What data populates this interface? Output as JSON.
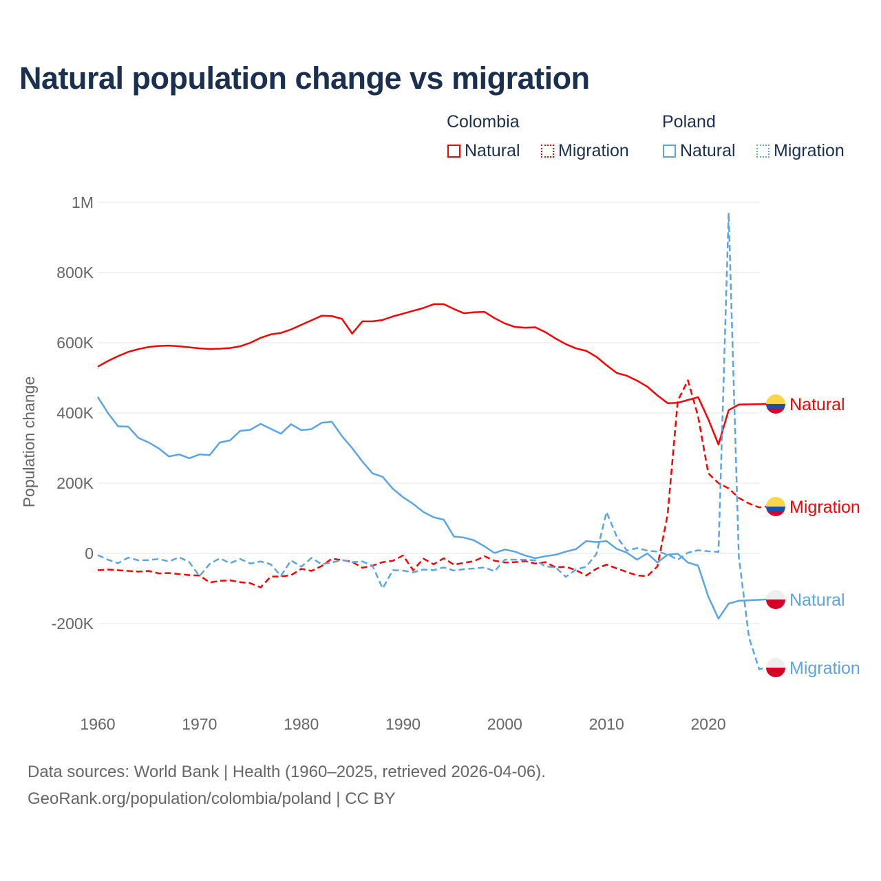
{
  "title": "Natural population change vs migration",
  "legend": {
    "groups": [
      {
        "name": "Colombia",
        "items": [
          {
            "label": "Natural",
            "color": "#ff0000",
            "style": "solid"
          },
          {
            "label": "Migration",
            "color": "#ff0000",
            "style": "dotted"
          }
        ]
      },
      {
        "name": "Poland",
        "items": [
          {
            "label": "Natural",
            "color": "#5ba4e6",
            "style": "solid"
          },
          {
            "label": "Migration",
            "color": "#5ba4e6",
            "style": "dotted"
          }
        ]
      }
    ]
  },
  "footer": {
    "line1": "Data sources: World Bank | Health (1960–2025, retrieved 2026-04-06).",
    "line2": "GeoRank.org/population/colombia/poland | CC BY"
  },
  "chart_data": {
    "type": "line",
    "title": "Natural population change vs migration",
    "xlabel": "",
    "ylabel": "Population change",
    "xlim": [
      1960,
      2025
    ],
    "ylim": [
      -400000,
      1000000
    ],
    "xticks": [
      1960,
      1970,
      1980,
      1990,
      2000,
      2010,
      2020
    ],
    "xtick_labels": [
      "1960",
      "1970",
      "1980",
      "1990",
      "2000",
      "2010",
      "2020"
    ],
    "yticks": [
      1000000,
      800000,
      600000,
      400000,
      200000,
      0,
      -200000
    ],
    "ytick_labels": [
      "1M",
      "800K",
      "600K",
      "400K",
      "200K",
      "0",
      "-200K"
    ],
    "grid": true,
    "x_start": 1960,
    "series": [
      {
        "name": "Colombia Natural",
        "label": "Natural",
        "country": "Colombia",
        "color": "#ff0000",
        "dashed": false,
        "values": [
          532000,
          548000,
          562000,
          574000,
          582000,
          588000,
          591000,
          592000,
          590000,
          587000,
          584000,
          582000,
          583000,
          585000,
          590000,
          600000,
          614000,
          624000,
          628000,
          638000,
          651000,
          664000,
          677000,
          676000,
          668000,
          626000,
          661000,
          661000,
          665000,
          675000,
          683000,
          691000,
          699000,
          710000,
          710000,
          696000,
          684000,
          687000,
          688000,
          670000,
          655000,
          645000,
          643000,
          644000,
          630000,
          612000,
          596000,
          584000,
          577000,
          560000,
          536000,
          514000,
          506000,
          492000,
          475000,
          450000,
          428000,
          429000,
          437000,
          445000,
          382000,
          310000,
          408000,
          424000
        ]
      },
      {
        "name": "Colombia Migration",
        "label": "Migration",
        "country": "Colombia",
        "color": "#ff0000",
        "dashed": true,
        "values": [
          -48000,
          -46000,
          -48000,
          -50000,
          -52000,
          -50000,
          -57000,
          -56000,
          -59000,
          -62000,
          -63000,
          -83000,
          -78000,
          -77000,
          -82000,
          -85000,
          -97000,
          -66000,
          -66000,
          -62000,
          -44000,
          -50000,
          -36000,
          -15000,
          -19000,
          -24000,
          -41000,
          -35000,
          -25000,
          -21000,
          -6000,
          -48000,
          -15000,
          -31000,
          -14000,
          -32000,
          -27000,
          -22000,
          -8000,
          -21000,
          -26000,
          -25000,
          -22000,
          -29000,
          -25000,
          -40000,
          -38000,
          -48000,
          -63000,
          -44000,
          -32000,
          -43000,
          -53000,
          -63000,
          -65000,
          -37000,
          110000,
          435000,
          493000,
          390000,
          228000,
          200000,
          185000,
          158000,
          142000,
          131000
        ]
      },
      {
        "name": "Poland Natural",
        "label": "Natural",
        "country": "Poland",
        "color": "#5ba4e6",
        "dashed": false,
        "values": [
          446000,
          400000,
          362000,
          361000,
          329000,
          316000,
          299000,
          276000,
          282000,
          271000,
          282000,
          280000,
          316000,
          322000,
          349000,
          352000,
          369000,
          355000,
          341000,
          368000,
          351000,
          354000,
          372000,
          375000,
          334000,
          300000,
          262000,
          228000,
          218000,
          184000,
          160000,
          141000,
          118000,
          103000,
          96000,
          48000,
          45000,
          37000,
          20000,
          1000,
          11000,
          5000,
          -6000,
          -14000,
          -8000,
          -4000,
          5000,
          12000,
          35000,
          32000,
          35000,
          13000,
          2000,
          -18000,
          0,
          -26000,
          -4000,
          -1000,
          -26000,
          -35000,
          -123000,
          -186000,
          -143000,
          -135000
        ]
      },
      {
        "name": "Poland Migration",
        "label": "Migration",
        "country": "Poland",
        "color": "#5ba4e6",
        "dashed": true,
        "values": [
          -5000,
          -18000,
          -28000,
          -12000,
          -20000,
          -19000,
          -16000,
          -23000,
          -11000,
          -25000,
          -65000,
          -30000,
          -14000,
          -28000,
          -16000,
          -29000,
          -23000,
          -31000,
          -64000,
          -20000,
          -38000,
          -13000,
          -31000,
          -26000,
          -19000,
          -25000,
          -23000,
          -35000,
          -100000,
          -48000,
          -49000,
          -54000,
          -46000,
          -48000,
          -40000,
          -49000,
          -45000,
          -43000,
          -40000,
          -51000,
          -18000,
          -18000,
          -18000,
          -20000,
          -37000,
          -40000,
          -67000,
          -46000,
          -38000,
          -2000,
          118000,
          48000,
          8000,
          15000,
          8000,
          5000,
          -3000,
          -18000,
          2000,
          9000,
          6000,
          4000,
          970000,
          -10000,
          -240000,
          -330000
        ]
      }
    ]
  }
}
